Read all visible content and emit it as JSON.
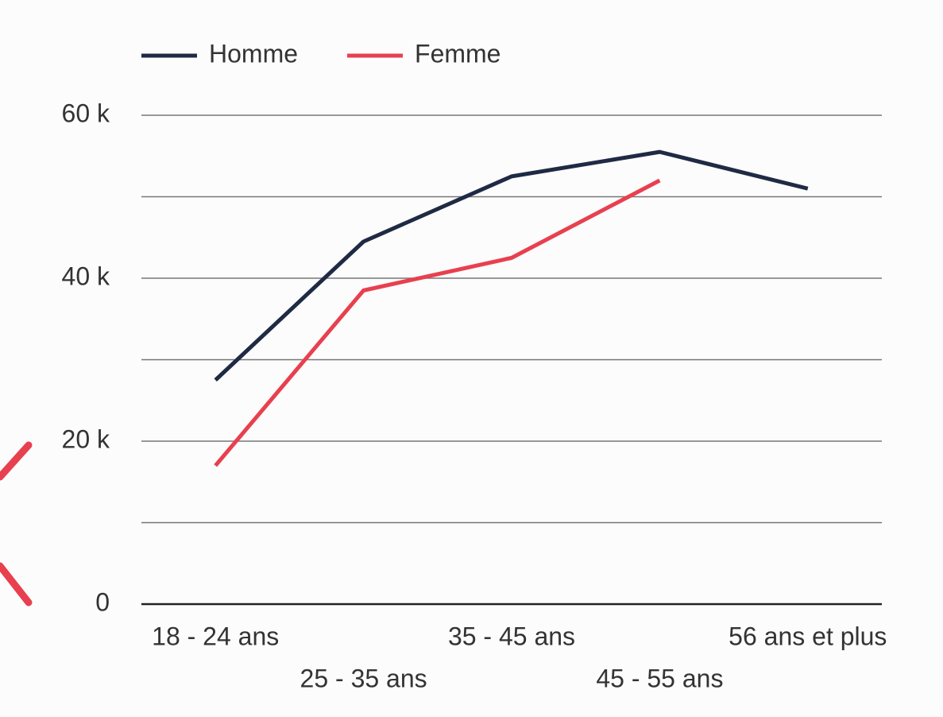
{
  "chart_data": {
    "type": "line",
    "categories": [
      "18 - 24 ans",
      "25 - 35 ans",
      "35 - 45 ans",
      "45 - 55 ans",
      "56 ans et plus"
    ],
    "series": [
      {
        "name": "Homme",
        "color": "#1f2a44",
        "values": [
          27500,
          44500,
          52500,
          55500,
          51000
        ]
      },
      {
        "name": "Femme",
        "color": "#e8404f",
        "values": [
          17000,
          38500,
          42500,
          52000,
          null
        ]
      }
    ],
    "ylim": [
      0,
      60000
    ],
    "yticks": [
      {
        "value": 0,
        "label": "0"
      },
      {
        "value": 20000,
        "label": "20 k"
      },
      {
        "value": 40000,
        "label": "40 k"
      },
      {
        "value": 60000,
        "label": "60 k"
      }
    ],
    "minor_yticks": [
      10000,
      30000,
      50000
    ],
    "grid": true,
    "legend": "top-left"
  }
}
